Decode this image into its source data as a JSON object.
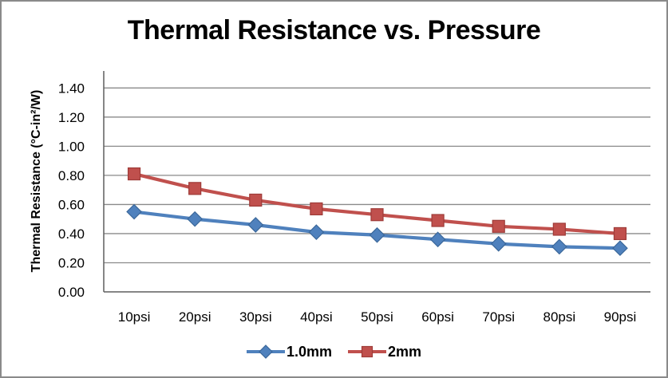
{
  "chart_data": {
    "type": "line",
    "title": "Thermal Resistance vs. Pressure",
    "xlabel": "",
    "ylabel": "Thermal Resistance (°C-in²/W)",
    "categories": [
      "10psi",
      "20psi",
      "30psi",
      "40psi",
      "50psi",
      "60psi",
      "70psi",
      "80psi",
      "90psi"
    ],
    "series": [
      {
        "name": "1.0mm",
        "marker": "diamond",
        "color": "#4F81BD",
        "marker_border": "#3A679A",
        "values": [
          0.55,
          0.5,
          0.46,
          0.41,
          0.39,
          0.36,
          0.33,
          0.31,
          0.3
        ]
      },
      {
        "name": "2mm",
        "marker": "square",
        "color": "#C0504D",
        "marker_border": "#9E3B38",
        "values": [
          0.81,
          0.71,
          0.63,
          0.57,
          0.53,
          0.49,
          0.45,
          0.43,
          0.4
        ]
      }
    ],
    "ylim": [
      0.0,
      1.4
    ],
    "y_tick_step": 0.2,
    "y_tick_labels": [
      "0.00",
      "0.20",
      "0.40",
      "0.60",
      "0.80",
      "1.00",
      "1.20",
      "1.40"
    ],
    "grid": "horizontal",
    "legend_position": "bottom"
  },
  "colors": {
    "background": "#FFFFFF",
    "outer_border": "#8A8A8A",
    "gridline": "#8A8A8A",
    "axis_line": "#5F5F5F",
    "text": "#000000"
  }
}
